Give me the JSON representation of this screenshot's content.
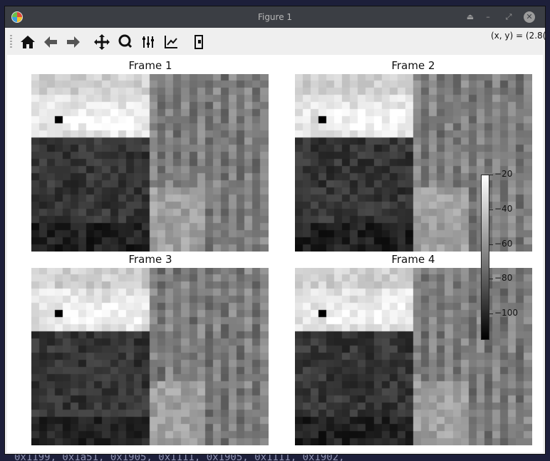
{
  "background_terminal": {
    "bottom_line": "0x1199, 0x1a51, 0x1905, 0x1111, 0x1905, 0x1111, 0x1902,"
  },
  "window": {
    "title": "Figure 1",
    "controls": [
      "⏏",
      "–",
      "⤢",
      "✕"
    ]
  },
  "toolbar": {
    "tools": [
      "home-icon",
      "back-icon",
      "forward-icon",
      "pan-icon",
      "zoom-icon",
      "subplots-icon",
      "edit-axes-icon",
      "save-icon"
    ],
    "coords_text": "(x, y) = (2.8("
  },
  "figure": {
    "frames": [
      {
        "title": "Frame 1"
      },
      {
        "title": "Frame 2"
      },
      {
        "title": "Frame 3"
      },
      {
        "title": "Frame 4"
      }
    ],
    "colorbar": {
      "ticks": [
        "−20",
        "−40",
        "−60",
        "−80",
        "−100"
      ]
    }
  },
  "chart_data": {
    "type": "heatmap",
    "colormap": "gray",
    "rows": 25,
    "cols": 30,
    "vmin": -115,
    "vmax": -20,
    "frame_titles": [
      "Frame 1",
      "Frame 2",
      "Frame 3",
      "Frame 4"
    ],
    "regions": {
      "upper_left_bright": {
        "value_approx": -30
      },
      "upper_left_minimum_pixel": {
        "value_approx": -115
      },
      "lower_left_dark": {
        "value_approx": -95
      },
      "right_columns_mid": {
        "value_approx": -70
      },
      "lower_middle_bright_patch": {
        "value_approx": -55
      }
    },
    "colorbar_ticks": [
      -20,
      -40,
      -60,
      -80,
      -100
    ]
  }
}
